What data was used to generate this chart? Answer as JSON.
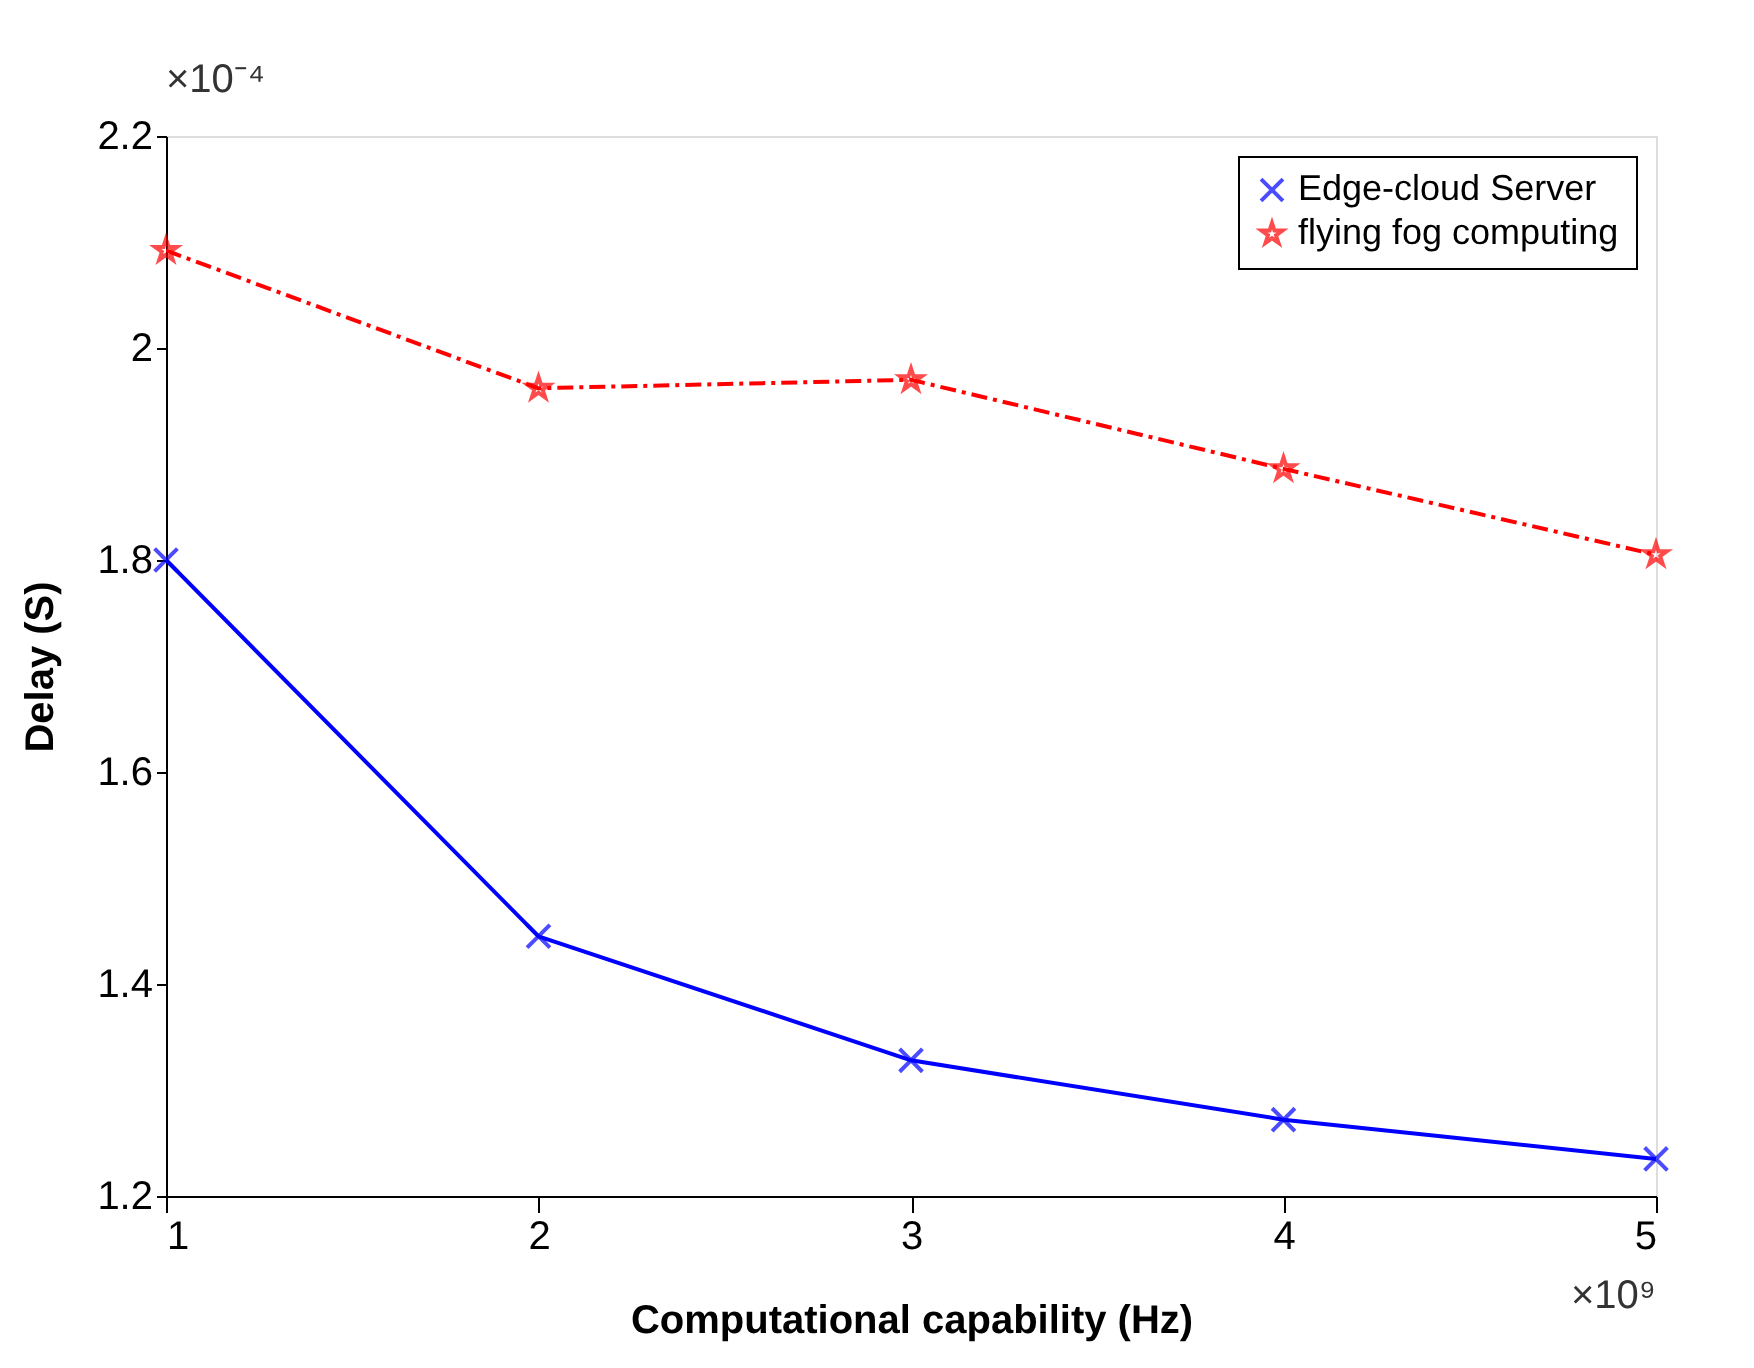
{
  "chart_data": {
    "type": "line",
    "xlabel": "Computational capability (Hz)",
    "ylabel": "Delay (S)",
    "x": [
      1,
      2,
      3,
      4,
      5
    ],
    "series": [
      {
        "name": "Edge-cloud Server",
        "color": "#0000ff",
        "marker": "cross",
        "line_style": "solid",
        "values": [
          1.8,
          1.445,
          1.328,
          1.272,
          1.235
        ]
      },
      {
        "name": "flying fog computing",
        "color": "#ff0000",
        "marker": "star",
        "line_style": "dashed",
        "values": [
          2.092,
          1.962,
          1.97,
          1.886,
          1.805
        ]
      }
    ],
    "xlim": [
      1,
      5
    ],
    "xticks": [
      1,
      2,
      3,
      4,
      5
    ],
    "ylim": [
      1.2,
      2.2
    ],
    "yticks": [
      1.2,
      1.4,
      1.6,
      1.8,
      2,
      2.2
    ],
    "annotations": [
      "×10⁻⁴",
      "×10⁹"
    ],
    "grid": false,
    "legend": "top right"
  }
}
